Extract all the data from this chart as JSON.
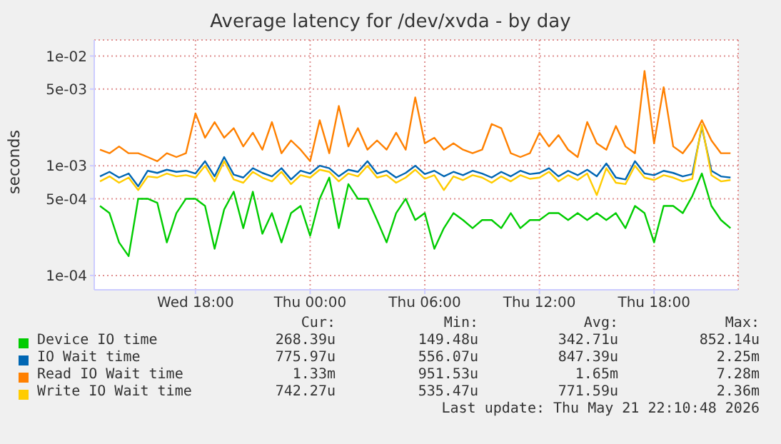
{
  "chart_data": {
    "type": "line",
    "title": "Average latency for /dev/xvda - by day",
    "ylabel": "seconds",
    "log": "y",
    "grid": true,
    "legend": "bottom",
    "xlim": [
      "2026-05-20T12:42",
      "2026-05-21T22:24"
    ],
    "xticks": [
      {
        "value": "2026-05-20T18:00",
        "label": "Wed 18:00"
      },
      {
        "value": "2026-05-21T00:00",
        "label": "Thu 00:00"
      },
      {
        "value": "2026-05-21T06:00",
        "label": "Thu 06:00"
      },
      {
        "value": "2026-05-21T12:00",
        "label": "Thu 12:00"
      },
      {
        "value": "2026-05-21T18:00",
        "label": "Thu 18:00"
      }
    ],
    "ylim": [
      7.4e-05,
      0.014
    ],
    "yticks": [
      {
        "value": 0.0001,
        "label": "1e-04"
      },
      {
        "value": 0.0005,
        "label": "5e-04"
      },
      {
        "value": 0.001,
        "label": "1e-03"
      },
      {
        "value": 0.005,
        "label": "5e-03"
      },
      {
        "value": 0.01,
        "label": "1e-02"
      }
    ],
    "x": [
      "2026-05-20T13:00",
      "2026-05-20T13:30",
      "2026-05-20T14:00",
      "2026-05-20T14:30",
      "2026-05-20T15:00",
      "2026-05-20T15:30",
      "2026-05-20T16:00",
      "2026-05-20T16:30",
      "2026-05-20T17:00",
      "2026-05-20T17:30",
      "2026-05-20T18:00",
      "2026-05-20T18:30",
      "2026-05-20T19:00",
      "2026-05-20T19:30",
      "2026-05-20T20:00",
      "2026-05-20T20:30",
      "2026-05-20T21:00",
      "2026-05-20T21:30",
      "2026-05-20T22:00",
      "2026-05-20T22:30",
      "2026-05-20T23:00",
      "2026-05-20T23:30",
      "2026-05-21T00:00",
      "2026-05-21T00:30",
      "2026-05-21T01:00",
      "2026-05-21T01:30",
      "2026-05-21T02:00",
      "2026-05-21T02:30",
      "2026-05-21T03:00",
      "2026-05-21T03:30",
      "2026-05-21T04:00",
      "2026-05-21T04:30",
      "2026-05-21T05:00",
      "2026-05-21T05:30",
      "2026-05-21T06:00",
      "2026-05-21T06:30",
      "2026-05-21T07:00",
      "2026-05-21T07:30",
      "2026-05-21T08:00",
      "2026-05-21T08:30",
      "2026-05-21T09:00",
      "2026-05-21T09:30",
      "2026-05-21T10:00",
      "2026-05-21T10:30",
      "2026-05-21T11:00",
      "2026-05-21T11:30",
      "2026-05-21T12:00",
      "2026-05-21T12:30",
      "2026-05-21T13:00",
      "2026-05-21T13:30",
      "2026-05-21T14:00",
      "2026-05-21T14:30",
      "2026-05-21T15:00",
      "2026-05-21T15:30",
      "2026-05-21T16:00",
      "2026-05-21T16:30",
      "2026-05-21T17:00",
      "2026-05-21T17:30",
      "2026-05-21T18:00",
      "2026-05-21T18:30",
      "2026-05-21T19:00",
      "2026-05-21T19:30",
      "2026-05-21T20:00",
      "2026-05-21T20:30",
      "2026-05-21T21:00",
      "2026-05-21T21:30",
      "2026-05-21T22:00"
    ],
    "series": [
      {
        "name": "Device IO time",
        "color": "#00cc00",
        "values": [
          0.00043,
          0.00037,
          0.0002,
          0.00015,
          0.0005,
          0.0005,
          0.00046,
          0.0002,
          0.00037,
          0.0005,
          0.0005,
          0.00043,
          0.000175,
          0.0004,
          0.00058,
          0.00027,
          0.00058,
          0.00024,
          0.00037,
          0.0002,
          0.00037,
          0.00043,
          0.00023,
          0.0005,
          0.00078,
          0.00027,
          0.00068,
          0.0005,
          0.0005,
          0.00032,
          0.0002,
          0.00037,
          0.0005,
          0.00032,
          0.00037,
          0.000175,
          0.00027,
          0.00037,
          0.00032,
          0.00027,
          0.00032,
          0.00032,
          0.00027,
          0.00037,
          0.00027,
          0.00032,
          0.00032,
          0.00037,
          0.00037,
          0.00032,
          0.00037,
          0.00032,
          0.00037,
          0.00032,
          0.00037,
          0.00027,
          0.00043,
          0.00037,
          0.0002,
          0.00043,
          0.00043,
          0.00037,
          0.00053,
          0.00085,
          0.00043,
          0.00032,
          0.00027
        ]
      },
      {
        "name": "IO Wait time",
        "color": "#0066b3",
        "values": [
          0.0008,
          0.00088,
          0.00078,
          0.00085,
          0.00065,
          0.0009,
          0.00086,
          0.00092,
          0.00088,
          0.0009,
          0.00085,
          0.0011,
          0.0008,
          0.0012,
          0.00083,
          0.00078,
          0.00095,
          0.00086,
          0.0008,
          0.00095,
          0.00075,
          0.0009,
          0.00085,
          0.001,
          0.00095,
          0.0008,
          0.00092,
          0.00088,
          0.0011,
          0.00085,
          0.0009,
          0.00078,
          0.00086,
          0.001,
          0.00084,
          0.0009,
          0.0008,
          0.00088,
          0.00082,
          0.0009,
          0.00085,
          0.00078,
          0.00088,
          0.0008,
          0.0009,
          0.00084,
          0.00086,
          0.00095,
          0.0008,
          0.0009,
          0.00082,
          0.00092,
          0.0008,
          0.00105,
          0.00078,
          0.00075,
          0.0011,
          0.00085,
          0.00082,
          0.0009,
          0.00086,
          0.0008,
          0.00084,
          0.00225,
          0.0009,
          0.0008,
          0.00078
        ]
      },
      {
        "name": "Read IO Wait time",
        "color": "#ff8000",
        "values": [
          0.0014,
          0.0013,
          0.0015,
          0.0013,
          0.0013,
          0.0012,
          0.0011,
          0.0013,
          0.0012,
          0.0013,
          0.003,
          0.0018,
          0.0025,
          0.0018,
          0.0022,
          0.0015,
          0.002,
          0.0014,
          0.0025,
          0.0013,
          0.0017,
          0.0014,
          0.0011,
          0.0026,
          0.0013,
          0.0035,
          0.0015,
          0.0022,
          0.0014,
          0.0017,
          0.0014,
          0.002,
          0.0014,
          0.0042,
          0.0016,
          0.0018,
          0.0014,
          0.0016,
          0.0014,
          0.0013,
          0.0014,
          0.0024,
          0.0022,
          0.0013,
          0.0012,
          0.0013,
          0.002,
          0.0015,
          0.0019,
          0.0014,
          0.0012,
          0.0025,
          0.0016,
          0.0014,
          0.0023,
          0.0015,
          0.0013,
          0.0073,
          0.0016,
          0.0052,
          0.0015,
          0.0013,
          0.0017,
          0.0026,
          0.0017,
          0.0013,
          0.0013
        ]
      },
      {
        "name": "Write IO Wait time",
        "color": "#ffcc00",
        "values": [
          0.00072,
          0.0008,
          0.0007,
          0.00078,
          0.0006,
          0.0008,
          0.00078,
          0.00085,
          0.0008,
          0.00082,
          0.00078,
          0.001,
          0.00072,
          0.0011,
          0.00075,
          0.0007,
          0.00088,
          0.00078,
          0.00072,
          0.00088,
          0.00068,
          0.00082,
          0.00078,
          0.00092,
          0.00088,
          0.00072,
          0.00085,
          0.0008,
          0.001,
          0.00078,
          0.00082,
          0.0007,
          0.00078,
          0.00092,
          0.00076,
          0.00082,
          0.0006,
          0.0008,
          0.00074,
          0.00082,
          0.00078,
          0.0007,
          0.0008,
          0.00072,
          0.00082,
          0.00076,
          0.00078,
          0.00088,
          0.00072,
          0.00082,
          0.00074,
          0.00085,
          0.00054,
          0.00095,
          0.0007,
          0.00068,
          0.001,
          0.00078,
          0.00074,
          0.00082,
          0.00078,
          0.00072,
          0.00076,
          0.00236,
          0.00082,
          0.00072,
          0.00074
        ]
      }
    ],
    "annotations": [
      "Cur:",
      "Min:",
      "Avg:",
      "Max:",
      "268.39u",
      "149.48u",
      "342.71u",
      "852.14u",
      "775.97u",
      "556.07u",
      "847.39u",
      "2.25m",
      "1.33m",
      "951.53u",
      "1.65m",
      "7.28m",
      "742.27u",
      "535.47u",
      "771.59u",
      "2.36m",
      "Last update: Thu May 21 22:10:48 2026"
    ]
  }
}
